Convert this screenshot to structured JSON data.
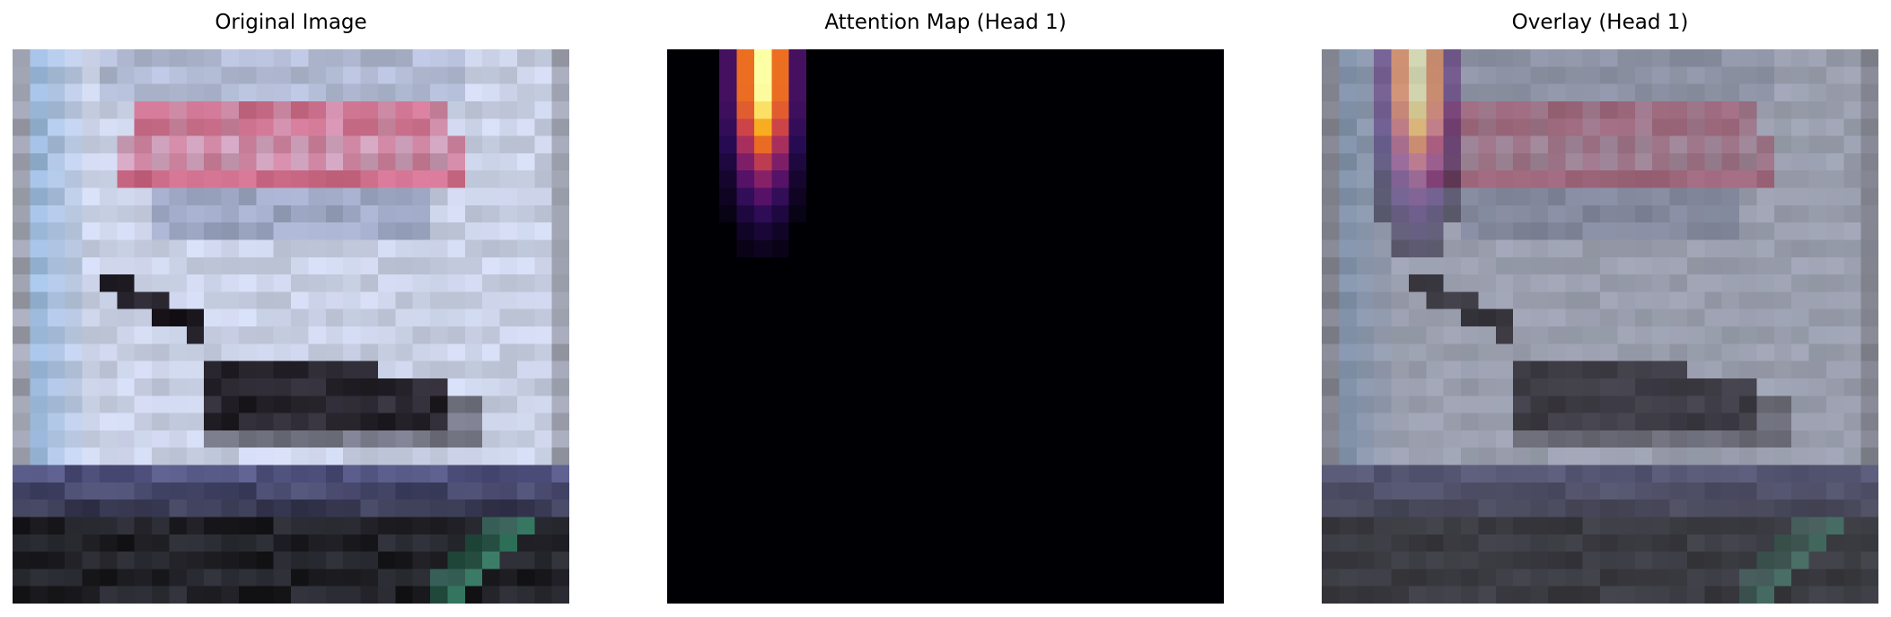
{
  "panels": [
    {
      "title": "Original Image"
    },
    {
      "title": "Attention Map (Head 1)"
    },
    {
      "title": "Overlay (Head 1)"
    }
  ],
  "attention": {
    "colormap": "inferno",
    "peak_column": 5
  },
  "colors": {
    "background": "#ffffff",
    "sign_panel": "#c9d2ec",
    "sign_text": "#d56a8a",
    "bird": "#2a2630",
    "ledge": "#5a5c8a",
    "ground": "#2b2b33",
    "rail": "#3d7e6a"
  }
}
